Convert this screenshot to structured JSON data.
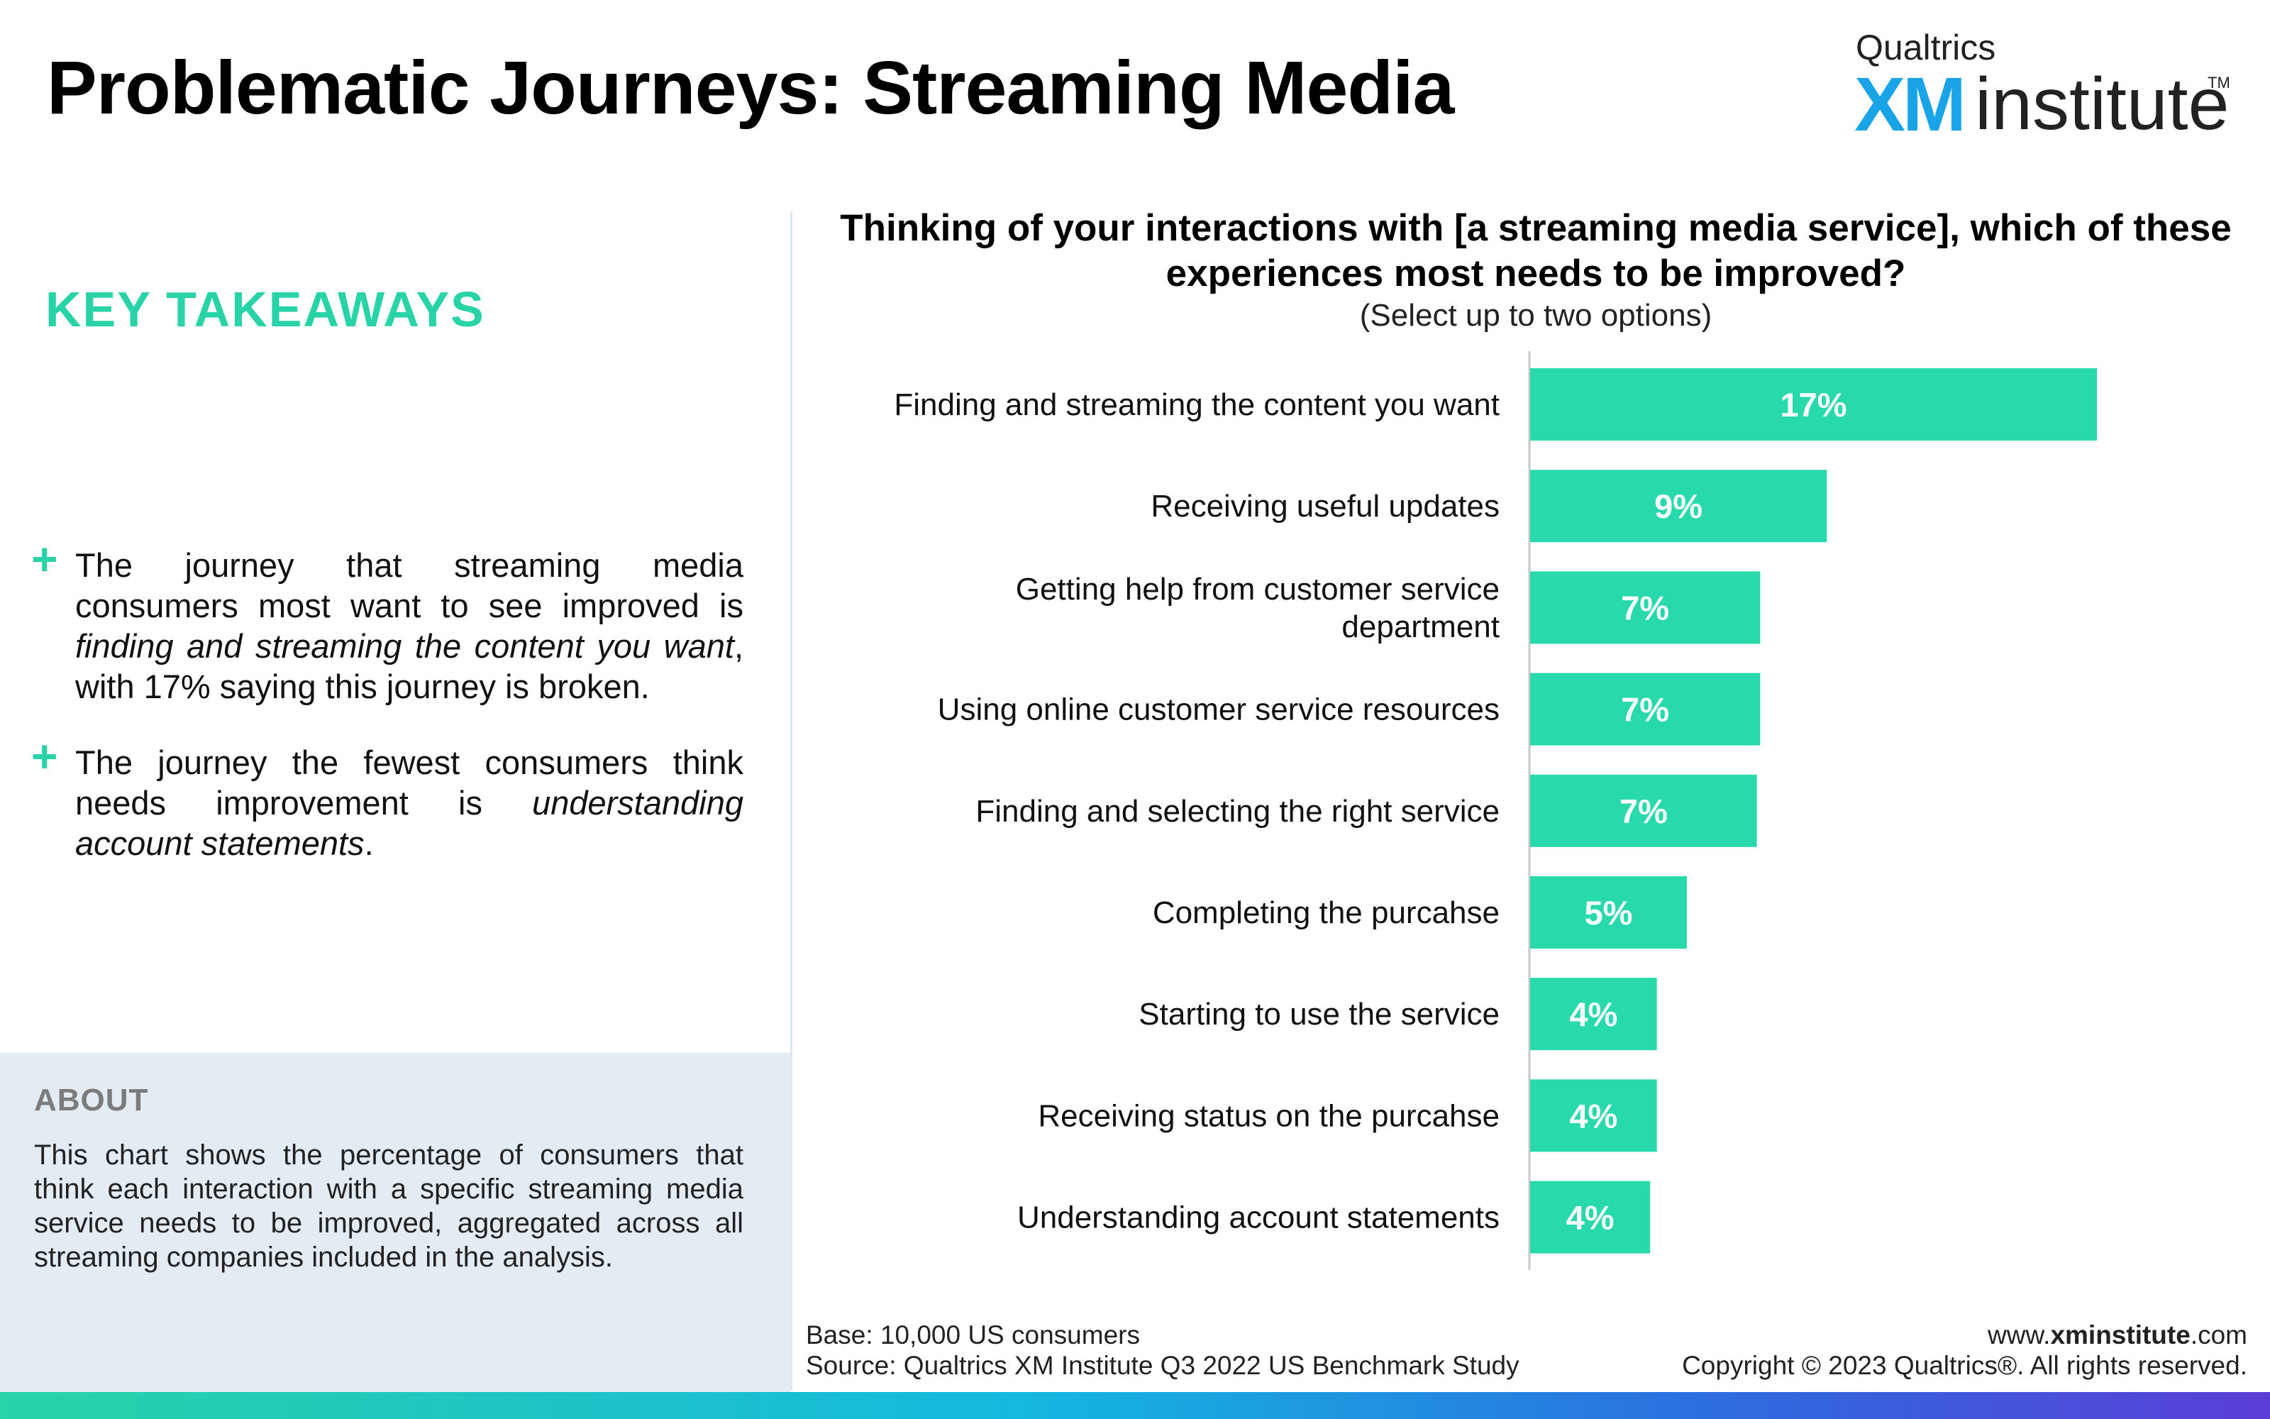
{
  "header": {
    "title": "Problematic Journeys: Streaming Media",
    "logo": {
      "brand": "Qualtrics",
      "xm": "XM",
      "institute": "institute",
      "tm": "TM"
    }
  },
  "takeaways": {
    "heading": "KEY TAKEAWAYS",
    "item1": {
      "pre": "The journey that streaming media consumers most want to see improved is ",
      "em": "finding and streaming the content you want",
      "post": ", with 17% saying this journey is broken."
    },
    "item2": {
      "pre": "The journey the fewest consumers think needs improvement is ",
      "em": "understanding account statements",
      "post": "."
    }
  },
  "about": {
    "heading": "ABOUT",
    "text": "This chart shows the percentage of consumers that think each interaction with a specific streaming media service needs to be improved, aggregated across all streaming companies included in the analysis."
  },
  "chart_data": {
    "type": "bar",
    "orientation": "horizontal",
    "title": "Thinking of your interactions with [a streaming media service], which of these experiences most needs to be improved?",
    "subtitle": "(Select up to two options)",
    "categories": [
      "Finding and streaming the content you want",
      "Receiving useful updates",
      "Getting help from customer service department",
      "Using online customer service resources",
      "Finding and selecting the right service",
      "Completing the purcahse",
      "Starting to use the service",
      "Receiving status on the purcahse",
      "Understanding account statements"
    ],
    "values": [
      17.0,
      8.9,
      6.9,
      6.9,
      6.8,
      4.7,
      3.8,
      3.8,
      3.6
    ],
    "value_labels": [
      "17%",
      "9%",
      "7%",
      "7%",
      "7%",
      "5%",
      "4%",
      "4%",
      "4%"
    ],
    "xlim": [
      0,
      20
    ],
    "bar_color": "#27d9ab",
    "label_color": "#ffffff",
    "grid": false
  },
  "footer": {
    "base": "Base: 10,000 US consumers",
    "source": "Source: Qualtrics XM Institute Q3 2022 US Benchmark Study",
    "url_pre": "www.",
    "url_bold": "xminstitute",
    "url_post": ".com",
    "copyright": "Copyright © 2023 Qualtrics®. All rights reserved."
  }
}
